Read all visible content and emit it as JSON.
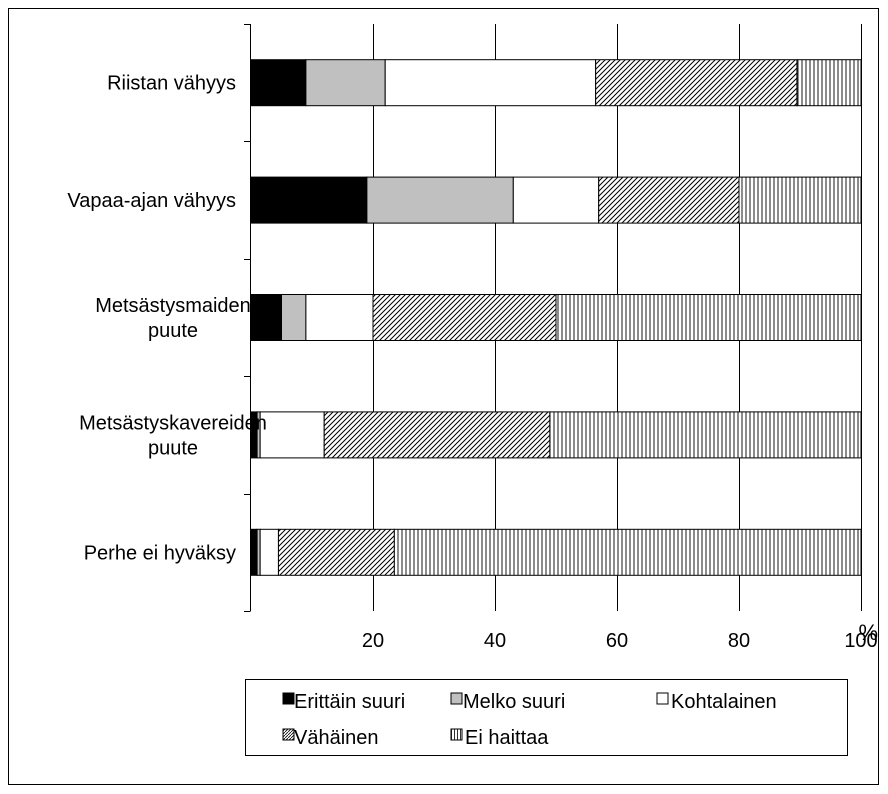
{
  "chart_data": {
    "type": "bar",
    "orientation": "horizontal",
    "stacked": true,
    "percent_stacked": true,
    "categories": [
      "Riistan vähyys",
      "Vapaa-ajan vähyys",
      "Metsästysmaiden puute",
      "Metsästyskavereiden puute",
      "Perhe ei hyväksy"
    ],
    "category_lines": [
      [
        "Riistan vähyys"
      ],
      [
        "Vapaa-ajan vähyys"
      ],
      [
        "Metsästysmaiden",
        "puute"
      ],
      [
        "Metsästyskavereiden",
        "puute"
      ],
      [
        "Perhe ei hyväksy"
      ]
    ],
    "series": [
      {
        "name": "Erittäin suuri",
        "fill": "solid",
        "color": "#000000",
        "values": [
          9,
          19,
          5,
          1,
          1
        ]
      },
      {
        "name": "Melko suuri",
        "fill": "solid",
        "color": "#c0c0c0",
        "values": [
          13,
          24,
          4,
          0.5,
          0.5
        ]
      },
      {
        "name": "Kohtalainen",
        "fill": "solid",
        "color": "#ffffff",
        "values": [
          34.5,
          14,
          11,
          10.5,
          3
        ]
      },
      {
        "name": "Vähäinen",
        "fill": "diagonal-hatch",
        "color": "#000000",
        "values": [
          33,
          23,
          30,
          37,
          19
        ]
      },
      {
        "name": "Ei haittaa",
        "fill": "vertical-hatch",
        "color": "#000000",
        "values": [
          10.5,
          20,
          50,
          51,
          76.5
        ]
      }
    ],
    "x_ticks": [
      "20",
      "40",
      "60",
      "80",
      "100"
    ],
    "x_tick_values": [
      20,
      40,
      60,
      80,
      100
    ],
    "xlabel": "%",
    "xlim": [
      0,
      100
    ],
    "grid": "vertical",
    "legend_position": "bottom"
  }
}
